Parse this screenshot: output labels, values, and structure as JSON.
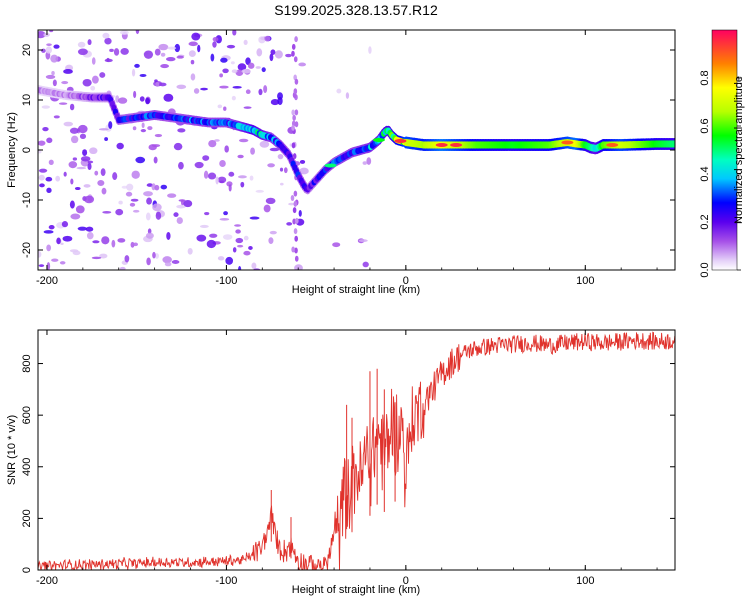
{
  "figure_title": "S199.2025.328.13.57.R12",
  "chart_data": [
    {
      "type": "heatmap",
      "name": "spectrogram",
      "xlabel": "Height of straight line (km)",
      "ylabel": "Frequency (Hz)",
      "xlim": [
        -205,
        150
      ],
      "ylim": [
        -24,
        24
      ],
      "xticks": [
        -200,
        -100,
        0,
        100
      ],
      "xtick_labels": [
        "-200",
        "-100",
        "0",
        "100"
      ],
      "yticks": [
        -20,
        -10,
        0,
        10,
        20
      ],
      "ytick_labels": [
        "-20",
        "-10",
        "0",
        "10",
        "20"
      ],
      "colorbar": {
        "label": "Normalized spectral amplitude",
        "range": [
          0,
          1
        ],
        "ticks": [
          0.0,
          0.2,
          0.4,
          0.6,
          0.8
        ],
        "tick_labels": [
          "0.0",
          "0.2",
          "0.4",
          "0.6",
          "0.8"
        ]
      },
      "ridge": {
        "description": "dominant frequency track vs height",
        "x": [
          -205,
          -190,
          -175,
          -165,
          -160,
          -150,
          -140,
          -130,
          -120,
          -110,
          -100,
          -95,
          -90,
          -85,
          -80,
          -75,
          -70,
          -65,
          -60,
          -57,
          -55,
          -50,
          -45,
          -40,
          -35,
          -30,
          -25,
          -20,
          -15,
          -12,
          -10,
          -8,
          -5,
          0,
          10,
          20,
          40,
          60,
          80,
          90,
          95,
          100,
          103,
          106,
          110,
          120,
          140,
          150
        ],
        "y": [
          12,
          11,
          10.5,
          10.5,
          6,
          6.5,
          7,
          6.5,
          6,
          5.5,
          5.5,
          5,
          4.5,
          4,
          3,
          2.5,
          1,
          -1,
          -5,
          -7,
          -8,
          -6,
          -4,
          -2.5,
          -1.5,
          -0.5,
          0,
          0.5,
          2,
          3.5,
          4,
          3,
          2,
          1.5,
          1,
          1,
          1,
          1,
          1,
          1.5,
          1.2,
          1,
          0.5,
          0.3,
          1,
          1,
          1.2,
          1.2
        ],
        "amplitude": [
          0.08,
          0.08,
          0.15,
          0.2,
          0.25,
          0.25,
          0.3,
          0.25,
          0.3,
          0.3,
          0.3,
          0.32,
          0.4,
          0.45,
          0.4,
          0.32,
          0.3,
          0.25,
          0.25,
          0.25,
          0.2,
          0.22,
          0.25,
          0.28,
          0.3,
          0.3,
          0.32,
          0.35,
          0.4,
          0.45,
          0.45,
          0.5,
          0.6,
          0.7,
          0.65,
          0.75,
          0.6,
          0.55,
          0.6,
          0.7,
          0.75,
          0.55,
          0.5,
          0.4,
          0.6,
          0.7,
          0.55,
          0.5
        ]
      }
    },
    {
      "type": "line",
      "name": "snr",
      "xlabel": "Height of straight line (km)",
      "ylabel": "SNR (10 * v/v)",
      "xlim": [
        -205,
        150
      ],
      "ylim": [
        0,
        930
      ],
      "xticks": [
        -200,
        -100,
        0,
        100
      ],
      "xtick_labels": [
        "-200",
        "-100",
        "0",
        "100"
      ],
      "yticks": [
        0,
        200,
        400,
        600,
        800
      ],
      "ytick_labels": [
        "0",
        "200",
        "400",
        "600",
        "800"
      ],
      "color": "#e0322c",
      "series": [
        {
          "name": "SNR",
          "x": [
            -205,
            -180,
            -160,
            -140,
            -120,
            -100,
            -90,
            -85,
            -80,
            -77,
            -75,
            -73,
            -70,
            -67,
            -65,
            -62,
            -60,
            -58,
            -55,
            -50,
            -45,
            -42,
            -40,
            -38,
            -35,
            -32,
            -30,
            -28,
            -25,
            -22,
            -20,
            -18,
            -15,
            -12,
            -10,
            -8,
            -5,
            -2,
            0,
            3,
            5,
            10,
            15,
            20,
            25,
            30,
            35,
            40,
            50,
            60,
            70,
            80,
            90,
            100,
            110,
            120,
            130,
            140,
            150
          ],
          "y": [
            15,
            20,
            25,
            28,
            30,
            35,
            40,
            60,
            90,
            150,
            220,
            150,
            80,
            70,
            100,
            70,
            40,
            30,
            20,
            15,
            20,
            70,
            150,
            120,
            250,
            350,
            300,
            400,
            350,
            450,
            420,
            480,
            520,
            450,
            500,
            550,
            520,
            550,
            380,
            560,
            600,
            650,
            700,
            760,
            800,
            830,
            850,
            860,
            870,
            875,
            880,
            870,
            880,
            885,
            880,
            885,
            890,
            885,
            890
          ]
        }
      ],
      "spikes": [
        {
          "x": -75,
          "y": 310
        },
        {
          "x": -64,
          "y": 205
        },
        {
          "x": -33,
          "y": 640
        },
        {
          "x": -30,
          "y": 590
        },
        {
          "x": -20,
          "y": 770
        },
        {
          "x": -16,
          "y": 780
        },
        {
          "x": -12,
          "y": 700
        },
        {
          "x": -6,
          "y": 650
        }
      ]
    }
  ]
}
